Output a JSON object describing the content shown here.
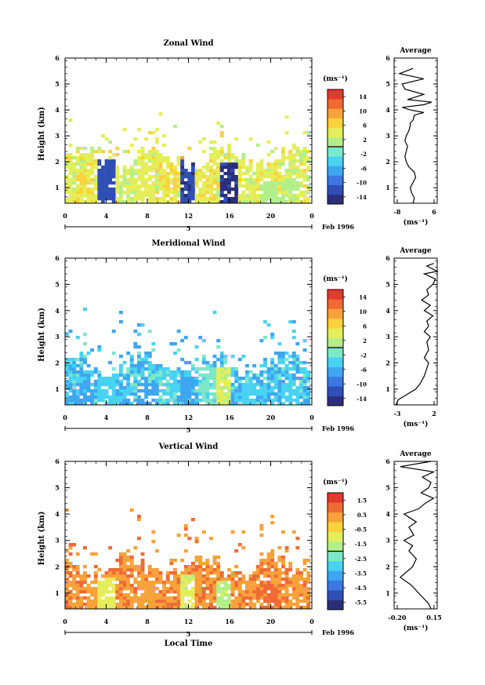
{
  "panels": [
    {
      "title": "Zonal Wind",
      "ylabel": "Height (km)",
      "yticks": [
        "1",
        "2",
        "3",
        "4",
        "5",
        "6"
      ],
      "xticks": [
        "0",
        "4",
        "8",
        "12",
        "16",
        "20",
        "0"
      ],
      "date_label": "5",
      "month_label": "Feb 1996",
      "unit": "(ms⁻¹)",
      "cbar_ticks": [
        "14",
        "10",
        "6",
        "2",
        "-2",
        "-6",
        "-10",
        "-14"
      ],
      "avg_title": "Average",
      "avg_xticks": [
        "-8",
        "6"
      ],
      "avg_xlabel": "(ms⁻¹)",
      "xlabel": ""
    },
    {
      "title": "Meridional Wind",
      "ylabel": "Height (km)",
      "yticks": [
        "1",
        "2",
        "3",
        "4",
        "5",
        "6"
      ],
      "xticks": [
        "0",
        "4",
        "8",
        "12",
        "16",
        "20",
        "0"
      ],
      "date_label": "5",
      "month_label": "Feb 1996",
      "unit": "(ms⁻¹)",
      "cbar_ticks": [
        "14",
        "10",
        "6",
        "2",
        "-2",
        "-6",
        "-10",
        "-14"
      ],
      "avg_title": "Average",
      "avg_xticks": [
        "-3",
        "2"
      ],
      "avg_xlabel": "(ms⁻¹)",
      "xlabel": ""
    },
    {
      "title": "Vertical Wind",
      "ylabel": "Height (km)",
      "yticks": [
        "1",
        "2",
        "3",
        "4",
        "5",
        "6"
      ],
      "xticks": [
        "0",
        "4",
        "8",
        "12",
        "16",
        "20",
        "0"
      ],
      "date_label": "5",
      "month_label": "Feb 1996",
      "unit": "(ms⁻¹)",
      "cbar_ticks": [
        "1.5",
        "0.5",
        "-0.5",
        "-1.5",
        "-2.5",
        "-3.5",
        "-4.5",
        "-5.5"
      ],
      "avg_title": "Average",
      "avg_xticks": [
        "-0.20",
        "0.15"
      ],
      "avg_xlabel": "(ms⁻¹)",
      "xlabel": "Local Time"
    }
  ],
  "chart_data": [
    {
      "type": "heatmap",
      "title": "Zonal Wind",
      "xlabel": "",
      "ylabel": "Height (km)",
      "xlim": [
        0,
        24
      ],
      "ylim": [
        0.4,
        6
      ],
      "colorbar_range": [
        -16,
        16
      ],
      "grid": false,
      "dominant_range": [
        2,
        6
      ],
      "cloud_top_km": 2.2,
      "notes_x": [
        3.7,
        11.8,
        15.8
      ],
      "cells": [
        [
          0,
          1.6,
          4
        ],
        [
          2,
          1.4,
          5
        ],
        [
          4,
          1.8,
          -12
        ],
        [
          6,
          1.5,
          3
        ],
        [
          8,
          1.6,
          4
        ],
        [
          10,
          1.7,
          5
        ],
        [
          12,
          1.9,
          8
        ],
        [
          12,
          1.8,
          -13
        ],
        [
          14,
          1.5,
          5
        ],
        [
          16,
          1.7,
          -14
        ],
        [
          18,
          1.2,
          3
        ],
        [
          20,
          1.0,
          1
        ],
        [
          22,
          1.1,
          2
        ]
      ],
      "avg": {
        "x": [
          -2.0,
          -1.5,
          -2.5,
          -3.0,
          -2.0,
          -1.0,
          -1.5,
          -3.5,
          -4.5,
          -5.0,
          -4.5,
          -4.0,
          -4.5,
          -5.0,
          -4.5,
          -3.5,
          -3.0,
          -3.0,
          -2.0,
          -1.5,
          2.0,
          -3.0,
          -6.0,
          2.0,
          5.0,
          -4.0,
          2.0,
          -5.0,
          -6.0,
          2.0,
          -7.0,
          -2.0
        ],
        "y": [
          0.4,
          0.6,
          0.8,
          1.0,
          1.2,
          1.4,
          1.6,
          1.8,
          2.0,
          2.2,
          2.4,
          2.6,
          2.7,
          2.8,
          3.0,
          3.2,
          3.4,
          3.5,
          3.6,
          3.8,
          3.9,
          4.0,
          4.1,
          4.2,
          4.3,
          4.4,
          4.6,
          4.8,
          5.0,
          5.2,
          5.4,
          5.6
        ],
        "xlim": [
          -9,
          7
        ]
      }
    },
    {
      "type": "heatmap",
      "title": "Meridional Wind",
      "xlabel": "",
      "ylabel": "Height (km)",
      "xlim": [
        0,
        24
      ],
      "ylim": [
        0.4,
        6
      ],
      "colorbar_range": [
        -16,
        16
      ],
      "grid": false,
      "dominant_range": [
        -8,
        -2
      ],
      "cloud_top_km": 2.0,
      "cells": [
        [
          2,
          1.0,
          -6
        ],
        [
          4,
          1.2,
          -4
        ],
        [
          6,
          0.8,
          -5
        ],
        [
          8,
          1.0,
          -7
        ],
        [
          10,
          1.4,
          -3
        ],
        [
          12,
          1.2,
          -6
        ],
        [
          14,
          1.5,
          -2
        ],
        [
          15.5,
          1.5,
          3
        ],
        [
          18,
          1.0,
          -4
        ],
        [
          20,
          0.9,
          -5
        ],
        [
          22,
          1.0,
          -4
        ]
      ],
      "avg": {
        "x": [
          -2.8,
          -2.5,
          -1.5,
          -0.5,
          0.0,
          0.5,
          0.8,
          1.0,
          0.5,
          1.0,
          0.8,
          1.2,
          0.5,
          1.0,
          0.8,
          1.5,
          0.5,
          1.2,
          0.2,
          1.0,
          0.8,
          1.5,
          1.8,
          0.5,
          2.0,
          0.8,
          1.6
        ],
        "y": [
          0.4,
          0.6,
          0.8,
          1.0,
          1.2,
          1.5,
          1.8,
          2.0,
          2.2,
          2.5,
          2.8,
          3.0,
          3.2,
          3.4,
          3.6,
          3.8,
          4.0,
          4.2,
          4.4,
          4.6,
          4.8,
          5.0,
          5.2,
          5.4,
          5.5,
          5.7,
          5.8
        ],
        "xlim": [
          -3,
          2
        ]
      }
    },
    {
      "type": "heatmap",
      "title": "Vertical Wind",
      "xlabel": "Local Time",
      "ylabel": "Height (km)",
      "xlim": [
        0,
        24
      ],
      "ylim": [
        0.4,
        6
      ],
      "colorbar_range": [
        -6,
        2
      ],
      "grid": false,
      "dominant_range": [
        0,
        1
      ],
      "cloud_top_km": 2.0,
      "cells": [
        [
          2,
          1.0,
          0.5
        ],
        [
          4,
          1.3,
          -1.0
        ],
        [
          8,
          1.2,
          0.4
        ],
        [
          11,
          1.5,
          0.6
        ],
        [
          12,
          1.4,
          -1.2
        ],
        [
          15.5,
          1.2,
          -1.5
        ],
        [
          20,
          1.0,
          0.8
        ],
        [
          22,
          1.0,
          0.6
        ]
      ],
      "avg": {
        "x": [
          0.1,
          0.08,
          0.04,
          0.0,
          -0.06,
          -0.15,
          -0.1,
          -0.05,
          -0.02,
          -0.08,
          -0.05,
          -0.12,
          -0.04,
          -0.08,
          -0.02,
          -0.12,
          0.0,
          0.05,
          0.12,
          0.02,
          0.08,
          0.1,
          0.03,
          0.12,
          -0.15,
          0.1
        ],
        "y": [
          0.4,
          0.6,
          0.8,
          1.0,
          1.3,
          1.6,
          1.8,
          2.0,
          2.3,
          2.6,
          2.8,
          3.0,
          3.2,
          3.5,
          3.7,
          4.0,
          4.2,
          4.4,
          4.6,
          4.8,
          5.0,
          5.2,
          5.4,
          5.6,
          5.8,
          6.0
        ],
        "xlim": [
          -0.2,
          0.15
        ]
      }
    }
  ]
}
